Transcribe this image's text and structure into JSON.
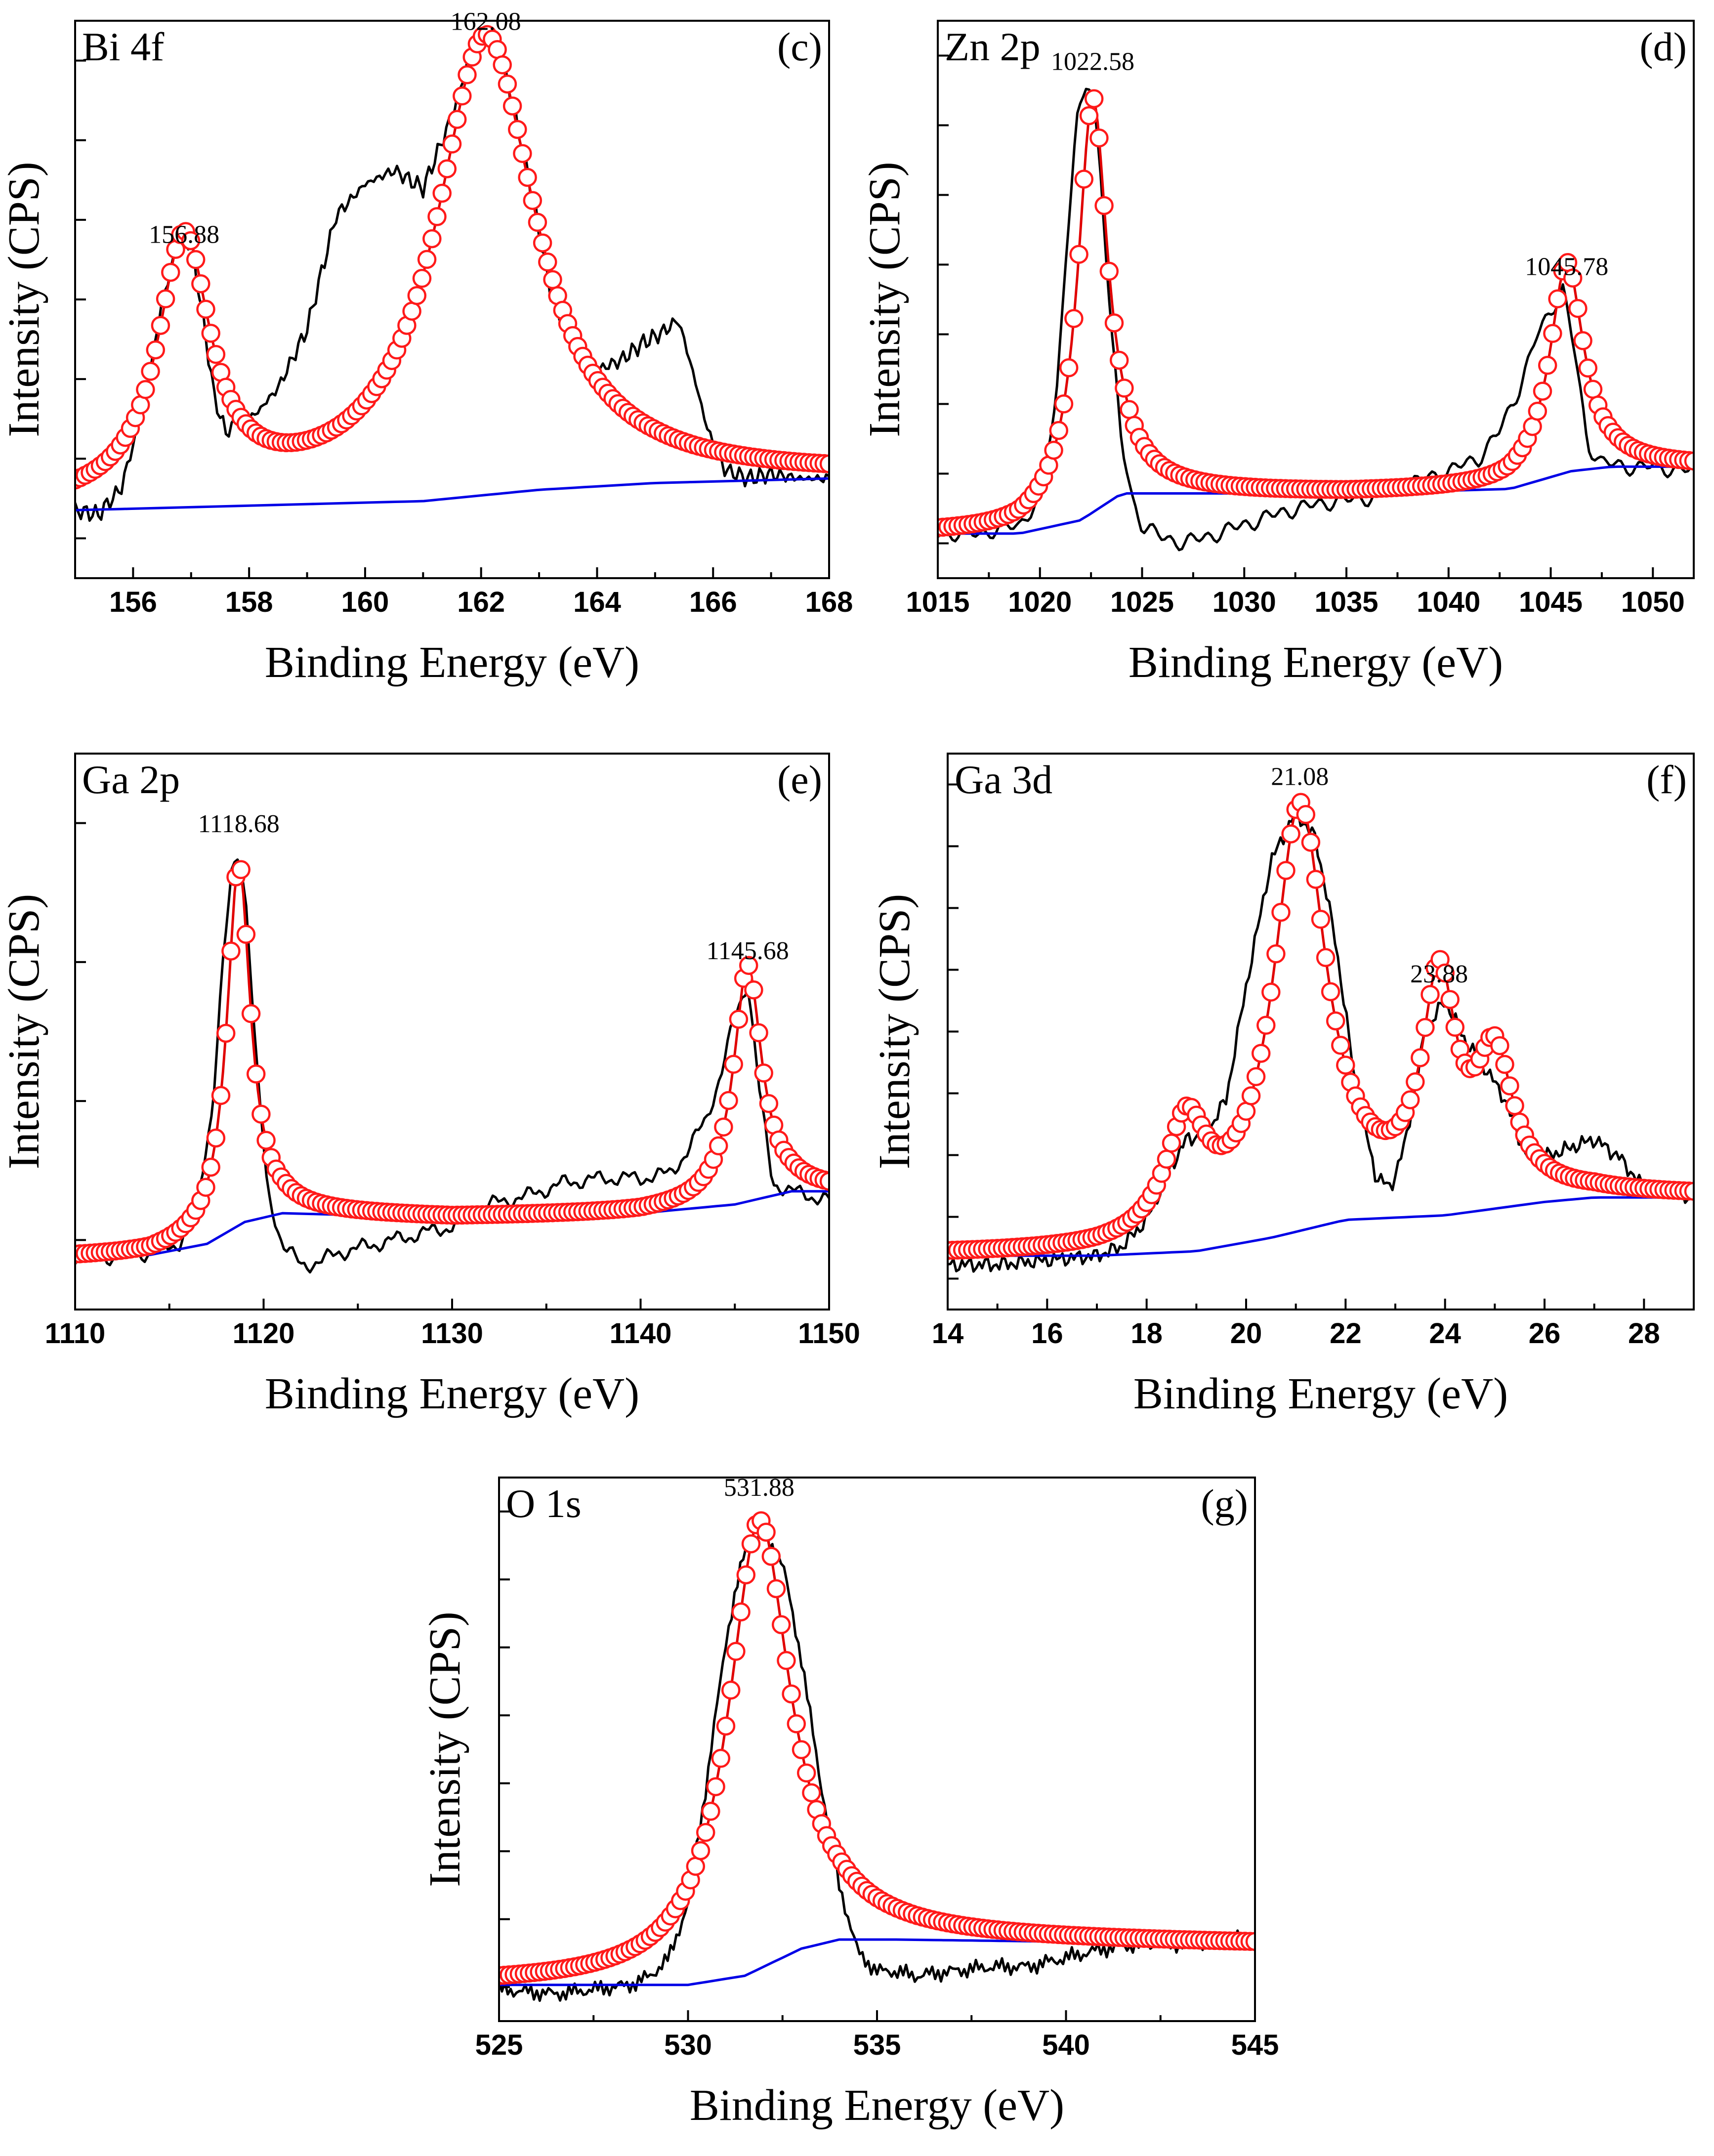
{
  "chart_data": [
    {
      "type": "line",
      "title": "Bi 4f",
      "panel_letter": "(c)",
      "xlabel": "Binding Energy (eV)",
      "ylabel": "Intensity (CPS)",
      "xlim": [
        155,
        168
      ],
      "ylim": [
        -0.15,
        1.08
      ],
      "x_ticks": [
        156,
        158,
        160,
        162,
        164,
        166,
        168
      ],
      "x_tick_labels": [
        "156",
        "158",
        "160",
        "162",
        "164",
        "166",
        "168"
      ],
      "y_tick_count": 7,
      "peak_labels": [
        {
          "text": "156.88",
          "x": 156.88,
          "y": 0.57
        },
        {
          "text": "162.08",
          "x": 162.08,
          "y": 1.04
        }
      ],
      "series": [
        {
          "name": "raw",
          "role": "raw",
          "x": [
            155.0,
            155.4,
            155.8,
            156.2,
            156.5,
            156.8,
            157.0,
            157.2,
            157.4,
            157.6,
            157.8,
            158.1,
            158.5,
            159.0,
            159.5,
            160.0,
            160.5,
            161.0,
            161.5,
            161.8,
            162.1,
            162.4,
            162.8,
            163.2,
            163.6,
            164.0,
            164.4,
            164.8,
            165.1,
            165.4,
            165.6,
            165.9,
            166.2,
            166.6,
            167.0,
            167.5,
            168.0
          ],
          "values": [
            0.0,
            -0.01,
            0.05,
            0.24,
            0.46,
            0.6,
            0.59,
            0.43,
            0.25,
            0.17,
            0.2,
            0.21,
            0.27,
            0.4,
            0.65,
            0.72,
            0.75,
            0.71,
            0.87,
            1.0,
            1.04,
            0.98,
            0.75,
            0.48,
            0.35,
            0.31,
            0.33,
            0.37,
            0.39,
            0.42,
            0.33,
            0.18,
            0.09,
            0.07,
            0.08,
            0.07,
            0.07
          ]
        },
        {
          "name": "fit",
          "role": "fit",
          "peaks": [
            {
              "center": 156.88,
              "height": 0.57,
              "width": 0.55
            },
            {
              "center": 162.08,
              "height": 1.01,
              "width": 1.05
            }
          ],
          "baseline": {
            "x": [
              155,
              158,
              161,
              163,
              165,
              168
            ],
            "values": [
              0.0,
              0.01,
              0.02,
              0.045,
              0.06,
              0.07
            ]
          }
        },
        {
          "name": "background",
          "role": "background",
          "x": [
            155,
            158,
            161,
            163,
            165,
            168
          ],
          "values": [
            0.0,
            0.01,
            0.02,
            0.045,
            0.06,
            0.07
          ]
        }
      ]
    },
    {
      "type": "line",
      "title": "Zn 2p",
      "panel_letter": "(d)",
      "xlabel": "Binding Energy (eV)",
      "ylabel": "Intensity (CPS)",
      "xlim": [
        1015,
        1052
      ],
      "ylim": [
        -0.1,
        1.15
      ],
      "x_ticks": [
        1015,
        1020,
        1025,
        1030,
        1035,
        1040,
        1045,
        1050
      ],
      "x_tick_labels": [
        "1015",
        "1020",
        "1025",
        "1030",
        "1035",
        "1040",
        "1045",
        "1050"
      ],
      "y_tick_count": 8,
      "peak_labels": [
        {
          "text": "1022.58",
          "x": 1022.58,
          "y": 1.02
        },
        {
          "text": "1045.78",
          "x": 1045.78,
          "y": 0.56
        }
      ],
      "series": [
        {
          "name": "raw",
          "role": "raw",
          "x": [
            1015.0,
            1017.0,
            1019.0,
            1020.0,
            1020.8,
            1021.3,
            1021.8,
            1022.3,
            1022.6,
            1023.0,
            1023.5,
            1024.0,
            1024.5,
            1025.0,
            1026.0,
            1027.0,
            1028.0,
            1030.0,
            1032.0,
            1034.0,
            1036.0,
            1038.0,
            1040.0,
            1041.5,
            1042.5,
            1043.5,
            1044.3,
            1045.0,
            1045.6,
            1046.2,
            1046.8,
            1047.5,
            1048.5,
            1050.0,
            1052.0
          ],
          "values": [
            0.0,
            0.0,
            0.02,
            0.08,
            0.3,
            0.65,
            0.92,
            1.01,
            0.98,
            0.8,
            0.45,
            0.2,
            0.08,
            0.02,
            -0.01,
            -0.02,
            -0.01,
            0.02,
            0.05,
            0.07,
            0.08,
            0.11,
            0.14,
            0.17,
            0.23,
            0.33,
            0.44,
            0.5,
            0.55,
            0.4,
            0.2,
            0.16,
            0.15,
            0.15,
            0.14
          ]
        },
        {
          "name": "fit",
          "role": "fit",
          "peaks": [
            {
              "center": 1022.58,
              "height": 0.93,
              "width": 0.9
            },
            {
              "center": 1045.78,
              "height": 0.47,
              "width": 1.0
            }
          ],
          "baseline": {
            "x": [
              1015,
              1019,
              1022,
              1024,
              1026,
              1035,
              1043,
              1046,
              1048,
              1052
            ],
            "values": [
              0.0,
              0.0,
              0.03,
              0.09,
              0.09,
              0.09,
              0.1,
              0.14,
              0.15,
              0.15
            ]
          }
        },
        {
          "name": "background",
          "role": "background",
          "x": [
            1015,
            1019,
            1022,
            1024,
            1026,
            1035,
            1043,
            1046,
            1048,
            1052
          ],
          "values": [
            0.0,
            0.0,
            0.03,
            0.09,
            0.09,
            0.09,
            0.1,
            0.14,
            0.15,
            0.15
          ]
        }
      ]
    },
    {
      "type": "line",
      "title": "Ga 2p",
      "panel_letter": "(e)",
      "xlabel": "Binding Energy (eV)",
      "ylabel": "Intensity (CPS)",
      "xlim": [
        1110,
        1150
      ],
      "ylim": [
        -0.12,
        1.15
      ],
      "x_ticks": [
        1110,
        1120,
        1130,
        1140,
        1150
      ],
      "x_tick_labels": [
        "1110",
        "1120",
        "1130",
        "1140",
        "1150"
      ],
      "y_tick_count": 4,
      "peak_labels": [
        {
          "text": "1118.68",
          "x": 1118.68,
          "y": 0.95
        },
        {
          "text": "1145.68",
          "x": 1145.68,
          "y": 0.66
        }
      ],
      "series": [
        {
          "name": "raw",
          "role": "raw",
          "x": [
            1110.0,
            1112.0,
            1114.0,
            1115.5,
            1116.5,
            1117.3,
            1117.8,
            1118.3,
            1118.7,
            1119.1,
            1119.6,
            1120.2,
            1121.0,
            1122.0,
            1123.0,
            1124.0,
            1126.0,
            1128.0,
            1130.0,
            1132.0,
            1134.0,
            1136.0,
            1138.0,
            1140.0,
            1141.5,
            1142.5,
            1143.5,
            1144.3,
            1145.0,
            1145.7,
            1146.3,
            1147.0,
            1148.0,
            1149.0,
            1150.0
          ],
          "values": [
            0.0,
            0.0,
            0.01,
            0.03,
            0.12,
            0.35,
            0.65,
            0.87,
            0.93,
            0.8,
            0.45,
            0.15,
            0.03,
            -0.02,
            -0.01,
            0.01,
            0.03,
            0.05,
            0.07,
            0.12,
            0.14,
            0.17,
            0.18,
            0.18,
            0.19,
            0.24,
            0.32,
            0.42,
            0.55,
            0.63,
            0.38,
            0.17,
            0.15,
            0.14,
            0.13
          ]
        },
        {
          "name": "fit",
          "role": "fit",
          "peaks": [
            {
              "center": 1118.68,
              "height": 0.83,
              "width": 0.75
            },
            {
              "center": 1145.68,
              "height": 0.54,
              "width": 0.9
            }
          ],
          "baseline": {
            "x": [
              1110,
              1114,
              1117,
              1119,
              1121,
              1130,
              1140,
              1145,
              1148,
              1150
            ],
            "values": [
              0.0,
              0.005,
              0.03,
              0.08,
              0.1,
              0.09,
              0.1,
              0.12,
              0.15,
              0.15
            ]
          }
        },
        {
          "name": "background",
          "role": "background",
          "x": [
            1110,
            1114,
            1117,
            1119,
            1121,
            1130,
            1140,
            1145,
            1148,
            1150
          ],
          "values": [
            0.0,
            0.005,
            0.03,
            0.08,
            0.1,
            0.09,
            0.1,
            0.12,
            0.15,
            0.15
          ]
        }
      ]
    },
    {
      "type": "line",
      "title": "Ga 3d",
      "panel_letter": "(f)",
      "xlabel": "Binding Energy (eV)",
      "ylabel": "Intensity (CPS)",
      "xlim": [
        14,
        29
      ],
      "ylim": [
        -0.12,
        1.12
      ],
      "x_ticks": [
        14,
        16,
        18,
        20,
        22,
        24,
        26,
        28
      ],
      "x_tick_labels": [
        "14",
        "16",
        "18",
        "20",
        "22",
        "24",
        "26",
        "28"
      ],
      "y_tick_count": 9,
      "peak_labels": [
        {
          "text": "21.08",
          "x": 21.08,
          "y": 1.03
        },
        {
          "text": "23.88",
          "x": 23.88,
          "y": 0.59
        }
      ],
      "series": [
        {
          "name": "raw",
          "role": "raw",
          "x": [
            14.0,
            15.0,
            16.0,
            17.0,
            17.5,
            18.0,
            18.5,
            18.8,
            19.2,
            19.6,
            20.0,
            20.5,
            21.0,
            21.4,
            21.8,
            22.2,
            22.6,
            22.9,
            23.2,
            23.6,
            24.0,
            24.4,
            24.8,
            25.2,
            25.6,
            26.0,
            26.5,
            27.0,
            27.5,
            28.0,
            28.5,
            29.0
          ],
          "values": [
            -0.02,
            -0.02,
            -0.01,
            0.0,
            0.02,
            0.08,
            0.2,
            0.26,
            0.27,
            0.35,
            0.6,
            0.88,
            0.99,
            0.93,
            0.7,
            0.38,
            0.18,
            0.15,
            0.25,
            0.5,
            0.57,
            0.48,
            0.42,
            0.35,
            0.23,
            0.22,
            0.24,
            0.26,
            0.22,
            0.15,
            0.14,
            0.13
          ]
        },
        {
          "name": "fit",
          "role": "fit",
          "peaks": [
            {
              "center": 18.8,
              "height": 0.25,
              "width": 0.5
            },
            {
              "center": 21.08,
              "height": 0.93,
              "width": 0.65
            },
            {
              "center": 23.88,
              "height": 0.48,
              "width": 0.42
            },
            {
              "center": 25.0,
              "height": 0.3,
              "width": 0.45
            }
          ],
          "baseline": {
            "x": [
              14,
              17,
              19,
              20.5,
              22,
              24,
              26,
              27,
              29
            ],
            "values": [
              0.0,
              0.0,
              0.01,
              0.04,
              0.08,
              0.09,
              0.12,
              0.13,
              0.13
            ]
          }
        },
        {
          "name": "background",
          "role": "background",
          "x": [
            14,
            17,
            19,
            20.5,
            22,
            24,
            26,
            27,
            29
          ],
          "values": [
            0.0,
            0.0,
            0.01,
            0.04,
            0.08,
            0.09,
            0.12,
            0.13,
            0.13
          ]
        }
      ]
    },
    {
      "type": "line",
      "title": "O 1s",
      "panel_letter": "(g)",
      "xlabel": "Binding Energy (eV)",
      "ylabel": "Intensity (CPS)",
      "xlim": [
        525,
        545
      ],
      "ylim": [
        -0.08,
        1.12
      ],
      "x_ticks": [
        525,
        530,
        535,
        540,
        545
      ],
      "x_tick_labels": [
        "525",
        "530",
        "535",
        "540",
        "545"
      ],
      "y_tick_count": 8,
      "peak_labels": [
        {
          "text": "531.88",
          "x": 531.88,
          "y": 1.06
        }
      ],
      "series": [
        {
          "name": "raw",
          "role": "raw",
          "x": [
            525.0,
            526.5,
            527.5,
            528.5,
            529.0,
            529.5,
            530.0,
            530.5,
            531.0,
            531.5,
            532.0,
            532.5,
            533.0,
            533.5,
            534.0,
            534.5,
            535.0,
            535.5,
            536.0,
            537.0,
            538.0,
            539.0,
            540.0,
            541.0,
            542.0,
            543.0,
            544.0,
            545.0
          ],
          "values": [
            -0.01,
            -0.02,
            -0.01,
            0.0,
            0.02,
            0.06,
            0.18,
            0.45,
            0.76,
            0.96,
            1.0,
            0.93,
            0.72,
            0.45,
            0.22,
            0.07,
            0.03,
            0.03,
            0.02,
            0.03,
            0.04,
            0.04,
            0.06,
            0.08,
            0.09,
            0.09,
            0.1,
            0.1
          ]
        },
        {
          "name": "fit",
          "role": "fit",
          "peaks": [
            {
              "center": 531.88,
              "height": 0.99,
              "width": 1.0
            }
          ],
          "baseline": {
            "x": [
              525,
              530,
              531.5,
              533,
              534,
              535.5,
              545
            ],
            "values": [
              0.0,
              0.0,
              0.02,
              0.08,
              0.1,
              0.1,
              0.09
            ]
          }
        },
        {
          "name": "background",
          "role": "background",
          "x": [
            525,
            530,
            531.5,
            533,
            534,
            535.5,
            545
          ],
          "values": [
            0.0,
            0.0,
            0.02,
            0.08,
            0.1,
            0.1,
            0.09
          ]
        }
      ]
    }
  ]
}
